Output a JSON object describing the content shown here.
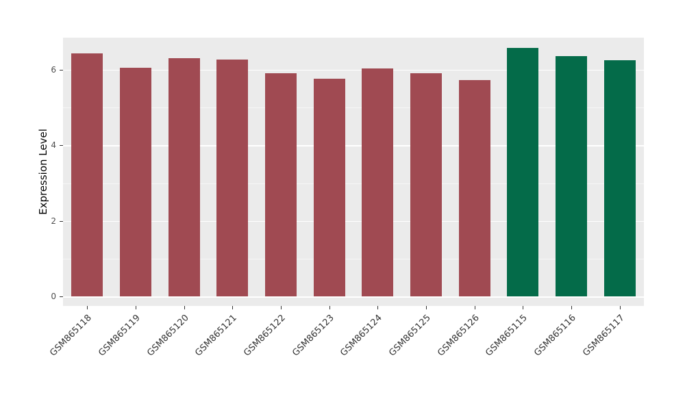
{
  "chart_data": {
    "type": "bar",
    "title": "",
    "xlabel": "",
    "ylabel": "Expression Level",
    "categories": [
      "GSM865118",
      "GSM865119",
      "GSM865120",
      "GSM865121",
      "GSM865122",
      "GSM865123",
      "GSM865124",
      "GSM865125",
      "GSM865126",
      "GSM865115",
      "GSM865116",
      "GSM865117"
    ],
    "values": [
      6.43,
      6.05,
      6.31,
      6.27,
      5.9,
      5.77,
      6.04,
      5.91,
      5.72,
      6.57,
      6.36,
      6.26
    ],
    "bar_colors": [
      "#A04A52",
      "#A04A52",
      "#A04A52",
      "#A04A52",
      "#A04A52",
      "#A04A52",
      "#A04A52",
      "#A04A52",
      "#A04A52",
      "#046B49",
      "#046B49",
      "#046B49"
    ],
    "groups": [
      {
        "color": "#A04A52",
        "categories": [
          "GSM865118",
          "GSM865119",
          "GSM865120",
          "GSM865121",
          "GSM865122",
          "GSM865123",
          "GSM865124",
          "GSM865125",
          "GSM865126"
        ]
      },
      {
        "color": "#046B49",
        "categories": [
          "GSM865115",
          "GSM865116",
          "GSM865117"
        ]
      }
    ],
    "bar_baseline": 0,
    "ylim": [
      -0.25,
      6.85
    ],
    "yticks": [
      0,
      2,
      4,
      6
    ],
    "yticks_minor": [
      1,
      3,
      5
    ],
    "grid": true,
    "legend": "none",
    "panel_bg": "#EBEBEB",
    "grid_color": "#FFFFFF",
    "tick_label_color": "#4D4D4D",
    "axis_title_color": "#000000"
  }
}
